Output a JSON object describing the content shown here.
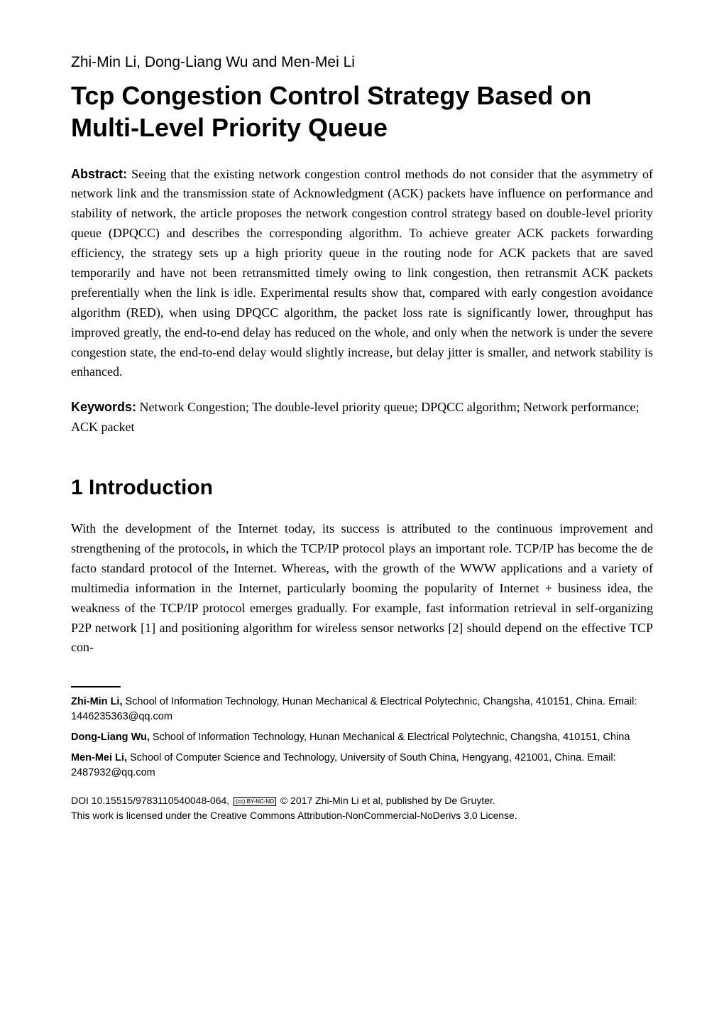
{
  "header": {
    "authors": "Zhi-Min Li, Dong-Liang Wu and Men-Mei Li",
    "title": "Tcp Congestion Control Strategy Based on Multi-Level Priority Queue"
  },
  "abstract": {
    "label": "Abstract:",
    "text": " Seeing that the existing network congestion control methods do not consider that the asymmetry of network link and the transmission state of Acknowledgment (ACK) packets have influence on performance and stability of network, the article proposes the network congestion control strategy based on double-level priority queue (DPQCC) and describes the corresponding algorithm. To achieve greater ACK packets forwarding efficiency, the strategy sets up a high priority queue in the routing node for ACK packets that are saved temporarily and have not been retransmitted timely owing to link congestion, then retransmit ACK packets preferentially when the link is idle. Experimental results show that, compared with early congestion avoidance algorithm (RED), when using DPQCC algorithm, the packet loss rate is significantly lower, throughput has improved greatly, the end-to-end delay has reduced on the whole, and only when the network is under the severe congestion state, the end-to-end delay would slightly increase, but delay jitter is smaller, and network stability is enhanced."
  },
  "keywords": {
    "label": "Keywords:",
    "text": " Network Congestion; The double-level priority queue; DPQCC algorithm; Network performance; ACK packet"
  },
  "section1": {
    "heading": "1 Introduction",
    "body": "With the development of the Internet today, its success is attributed to the continuous improvement and strengthening of the protocols, in which the TCP/IP protocol plays an important role.  TCP/IP has become the de facto standard protocol of the Internet. Whereas, with the growth of the WWW applications and a variety of multimedia information in the Internet, particularly booming the popularity of Internet + business idea, the weakness of the TCP/IP protocol emerges gradually. For example, fast information retrieval in self-organizing P2P network [1] and positioning algorithm for wireless sensor networks [2] should depend on the effective TCP con-"
  },
  "footnotes": [
    {
      "name": "Zhi-Min Li,",
      "affiliation": "  School of Information Technology, Hunan Mechanical & Electrical Polytechnic, Changsha, 410151, China. Email: 1446235363@qq.com"
    },
    {
      "name": "Dong-Liang Wu,",
      "affiliation": " School of Information Technology, Hunan Mechanical & Electrical Polytechnic, Changsha, 410151, China"
    },
    {
      "name": "Men-Mei Li,",
      "affiliation": " School of Computer Science and Technology, University of South China, Hengyang, 421001, China.  Email: 2487932@qq.com"
    }
  ],
  "footer": {
    "doi_prefix": "DOI 10.15515/9783110540048-064, ",
    "cc_label": "(cc) BY-NC-ND",
    "copyright": " © 2017 Zhi-Min Li et al, published by De Gruyter.",
    "license": "This work is licensed under the Creative Commons Attribution-NonCommercial-NoDerivs 3.0 License."
  },
  "style": {
    "background_color": "#ffffff",
    "text_color": "#000000",
    "serif_font": "Georgia, 'Times New Roman', serif",
    "sans_font": "Arial, Helvetica, sans-serif",
    "authors_fontsize": 21,
    "title_fontsize": 36,
    "body_fontsize": 18,
    "section_heading_fontsize": 30,
    "footnote_fontsize": 14.5,
    "footer_fontsize": 14
  }
}
